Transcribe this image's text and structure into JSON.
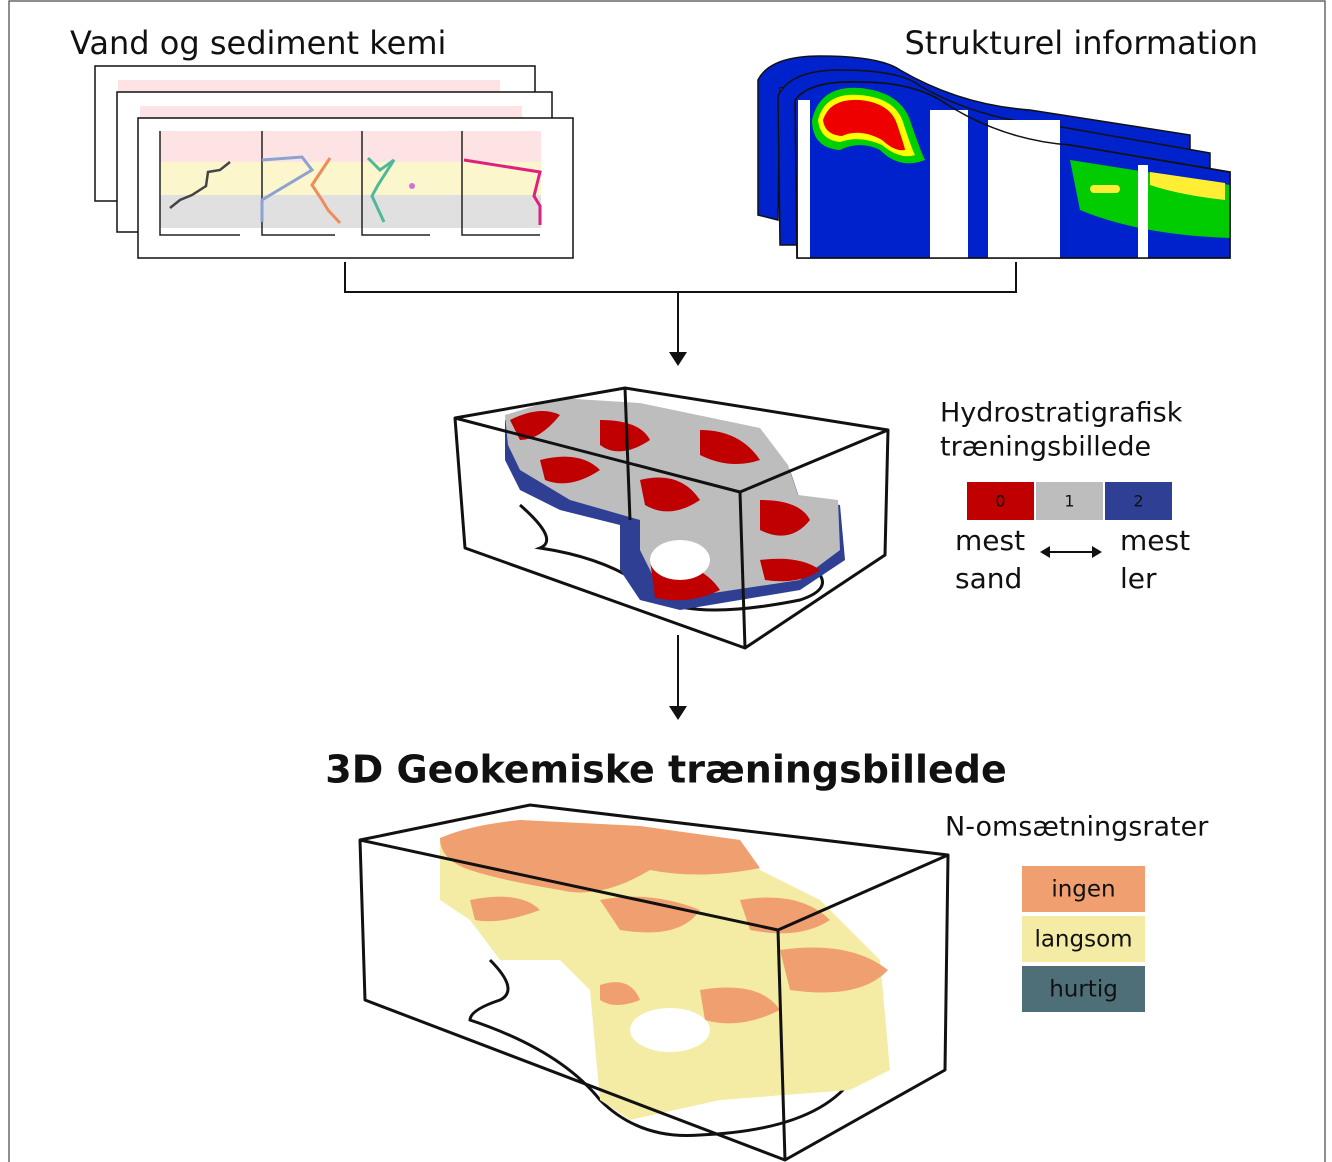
{
  "inputs": {
    "chemistry_title": "Vand og sediment kemi",
    "structure_title": "Strukturel information"
  },
  "hydro": {
    "title_lines": [
      "Hydrostratigrafisk",
      "træningsbillede"
    ],
    "classes": [
      {
        "label": 0,
        "color": "#c00000"
      },
      {
        "label": 1,
        "color": "#bdbdbd"
      },
      {
        "label": 2,
        "color": "#2e3f94"
      }
    ],
    "left_label": [
      "mest",
      "sand"
    ],
    "right_label": [
      "mest",
      "ler"
    ]
  },
  "geochem": {
    "title": "3D Geokemiske træningsbillede",
    "legend_title": "N-omsætningsrater",
    "classes": [
      {
        "label": "ingen",
        "color": "#f0a070"
      },
      {
        "label": "langsom",
        "color": "#f4eca4"
      },
      {
        "label": "hurtig",
        "color": "#4f6f78"
      }
    ]
  }
}
